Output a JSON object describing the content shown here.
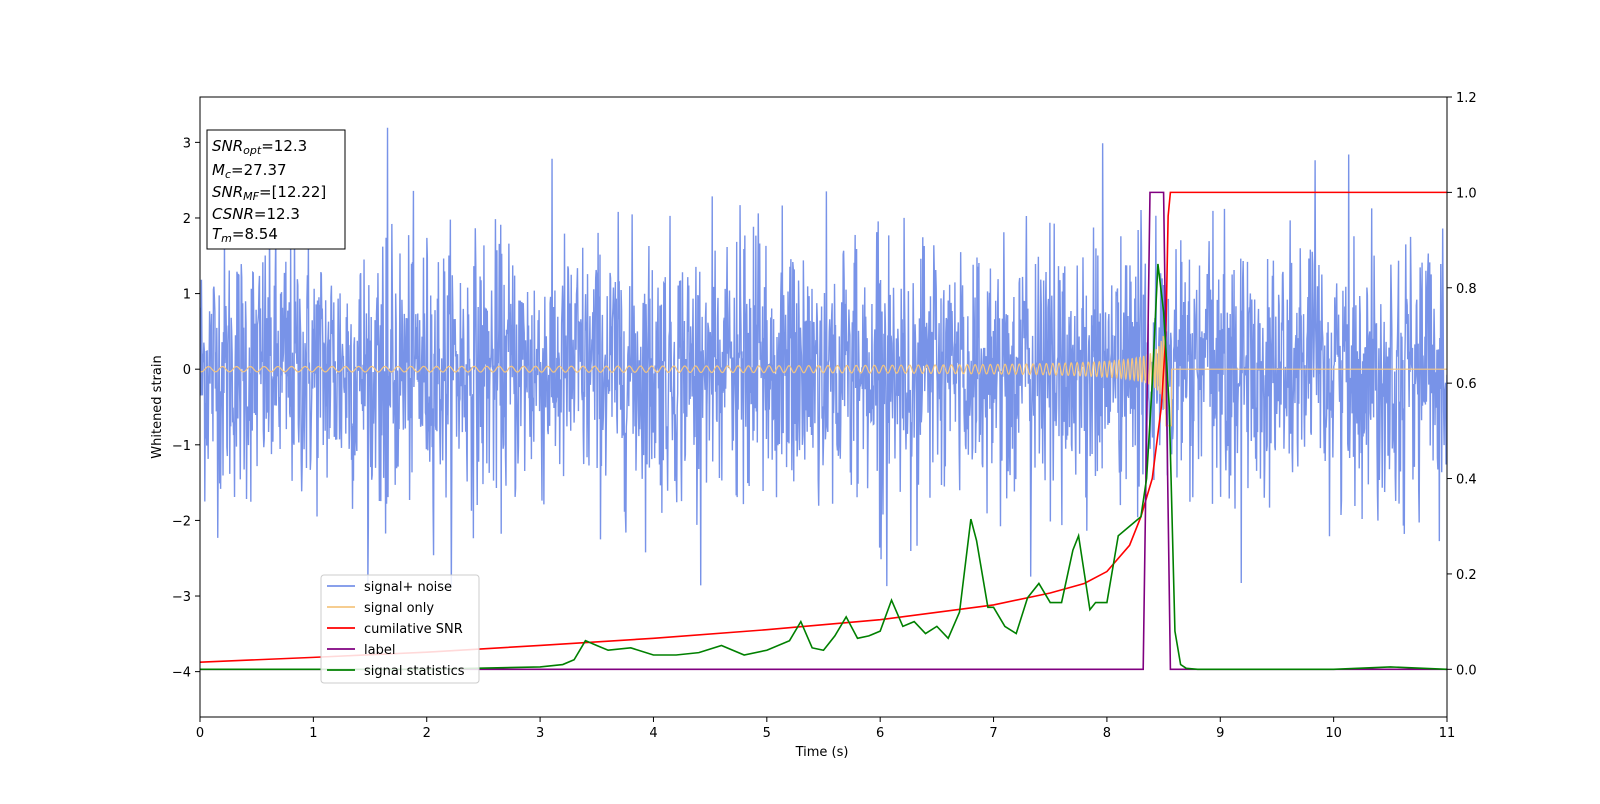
{
  "chart_data": {
    "type": "line",
    "xlabel": "Time (s)",
    "ylabel": "Whitened strain",
    "xlim": [
      0,
      11
    ],
    "ylim_left": [
      -4.6,
      3.6
    ],
    "ylim_right": [
      -0.1,
      1.2
    ],
    "grid": false,
    "legend_position": "lower-left",
    "x_ticks": [
      "0",
      "1",
      "2",
      "3",
      "4",
      "5",
      "6",
      "7",
      "8",
      "9",
      "10",
      "11"
    ],
    "x_tick_values": [
      0,
      1,
      2,
      3,
      4,
      5,
      6,
      7,
      8,
      9,
      10,
      11
    ],
    "y_left_ticks": [
      "−4",
      "−3",
      "−2",
      "−1",
      "0",
      "1",
      "2",
      "3"
    ],
    "y_left_tick_values": [
      -4,
      -3,
      -2,
      -1,
      0,
      1,
      2,
      3
    ],
    "y_right_ticks": [
      "0.0",
      "0.2",
      "0.4",
      "0.6",
      "0.8",
      "1.0",
      "1.2"
    ],
    "y_right_tick_values": [
      0.0,
      0.2,
      0.4,
      0.6,
      0.8,
      1.0,
      1.2
    ],
    "annotation": {
      "lines": [
        {
          "sym": "SNR",
          "sub": "opt",
          "rest": "=12.3"
        },
        {
          "sym": "M",
          "sub": "c",
          "rest": "=27.37"
        },
        {
          "sym": "SNR",
          "sub": "MF",
          "rest": "=[12.22]"
        },
        {
          "sym": "CSNR",
          "sub": "",
          "rest": "=12.3"
        },
        {
          "sym": "T",
          "sub": "m",
          "rest": "=8.54"
        }
      ]
    },
    "series": [
      {
        "name": "signal+ noise",
        "axis": "left",
        "color": "#7893e8",
        "description": "whitened noisy strain, roughly Gaussian with std ~0.9 and peaks to about ±3.2",
        "amplitude_envelope": [
          -2.9,
          3.2
        ]
      },
      {
        "name": "signal only",
        "axis": "left",
        "color": "#f5c680",
        "chirp": {
          "t_merge": 8.54,
          "amp_start": 0.02,
          "amp_peak": 0.75,
          "f_start": 8,
          "f_peak": 45
        }
      },
      {
        "name": "cumilative SNR",
        "axis": "right",
        "color": "#ff0000",
        "x": [
          0,
          1,
          2,
          3,
          4,
          5,
          6,
          7,
          7.5,
          7.8,
          8.0,
          8.2,
          8.3,
          8.4,
          8.48,
          8.52,
          8.54,
          8.56,
          11
        ],
        "y": [
          0.015,
          0.025,
          0.036,
          0.05,
          0.065,
          0.083,
          0.104,
          0.135,
          0.16,
          0.18,
          0.205,
          0.26,
          0.32,
          0.4,
          0.55,
          0.7,
          0.95,
          1.0,
          1.0
        ]
      },
      {
        "name": "label",
        "axis": "right",
        "color": "#800080",
        "x": [
          0,
          8.32,
          8.38,
          8.5,
          8.56,
          11
        ],
        "y": [
          0.0,
          0.0,
          1.0,
          1.0,
          0.0,
          0.0
        ]
      },
      {
        "name": "signal statistics",
        "axis": "right",
        "color": "#008000",
        "x": [
          0,
          1,
          2,
          3,
          3.2,
          3.3,
          3.4,
          3.5,
          3.6,
          3.8,
          4.0,
          4.2,
          4.4,
          4.6,
          4.8,
          5.0,
          5.2,
          5.3,
          5.4,
          5.5,
          5.6,
          5.7,
          5.8,
          5.9,
          6.0,
          6.1,
          6.2,
          6.3,
          6.4,
          6.5,
          6.6,
          6.7,
          6.8,
          6.85,
          6.95,
          7.0,
          7.1,
          7.2,
          7.3,
          7.4,
          7.5,
          7.6,
          7.7,
          7.75,
          7.85,
          7.9,
          8.0,
          8.1,
          8.2,
          8.3,
          8.35,
          8.4,
          8.45,
          8.5,
          8.55,
          8.6,
          8.65,
          8.7,
          8.8,
          9,
          10,
          10.5,
          11
        ],
        "y": [
          0.0,
          0.0,
          0.0,
          0.005,
          0.01,
          0.02,
          0.06,
          0.05,
          0.04,
          0.045,
          0.03,
          0.03,
          0.035,
          0.05,
          0.03,
          0.04,
          0.06,
          0.1,
          0.045,
          0.04,
          0.07,
          0.11,
          0.065,
          0.07,
          0.08,
          0.145,
          0.09,
          0.1,
          0.075,
          0.09,
          0.065,
          0.12,
          0.315,
          0.27,
          0.13,
          0.13,
          0.09,
          0.075,
          0.15,
          0.18,
          0.14,
          0.14,
          0.25,
          0.28,
          0.125,
          0.14,
          0.14,
          0.28,
          0.3,
          0.32,
          0.4,
          0.6,
          0.85,
          0.75,
          0.55,
          0.08,
          0.01,
          0.002,
          0.0,
          0.0,
          0.0,
          0.005,
          0.0
        ]
      }
    ]
  }
}
